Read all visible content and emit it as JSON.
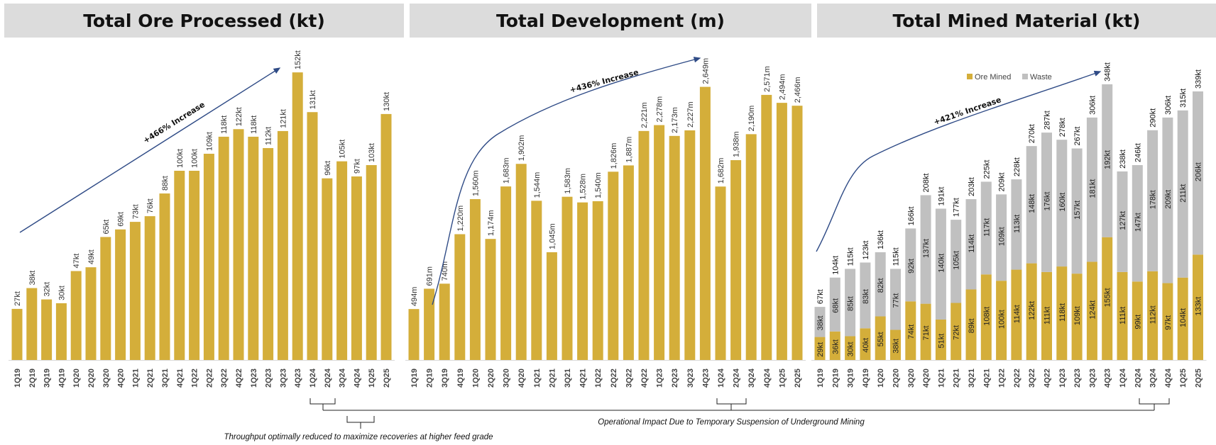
{
  "colors": {
    "ore": "#d4ae3a",
    "waste": "#c0c0c0",
    "arrow": "#2f4b86",
    "header_bg": "#dcdcdc"
  },
  "chart_data": [
    {
      "type": "bar",
      "title": "Total Ore Processed (kt)",
      "unit_suffix": "kt",
      "annotation": "+466% Increase",
      "categories": [
        "1Q19",
        "2Q19",
        "3Q19",
        "4Q19",
        "1Q20",
        "2Q20",
        "3Q20",
        "4Q20",
        "1Q21",
        "2Q21",
        "3Q21",
        "4Q21",
        "1Q22",
        "2Q22",
        "3Q22",
        "4Q22",
        "1Q23",
        "2Q23",
        "3Q23",
        "4Q23",
        "1Q24",
        "2Q24",
        "3Q24",
        "4Q24",
        "1Q25",
        "2Q25"
      ],
      "values": [
        27,
        38,
        32,
        30,
        47,
        49,
        65,
        69,
        73,
        76,
        88,
        100,
        100,
        109,
        118,
        122,
        118,
        112,
        121,
        152,
        131,
        96,
        105,
        97,
        103,
        130
      ],
      "labels": [
        "27kt",
        "38kt",
        "32kt",
        "30kt",
        "47kt",
        "49kt",
        "65kt",
        "69kt",
        "73kt",
        "76kt",
        "88kt",
        "100kt",
        "100kt",
        "109kt",
        "118kt",
        "122kt",
        "118kt",
        "112kt",
        "121kt",
        "152kt",
        "131kt",
        "96kt",
        "105kt",
        "97kt",
        "103kt",
        "130kt"
      ],
      "grid": false
    },
    {
      "type": "bar",
      "title": "Total Development (m)",
      "unit_suffix": "m",
      "annotation": "+436% Increase",
      "categories": [
        "1Q19",
        "2Q19",
        "3Q19",
        "4Q19",
        "1Q20",
        "2Q20",
        "3Q20",
        "4Q20",
        "1Q21",
        "2Q21",
        "3Q21",
        "4Q21",
        "1Q22",
        "2Q22",
        "3Q22",
        "4Q22",
        "1Q23",
        "2Q23",
        "3Q23",
        "4Q23",
        "1Q24",
        "2Q24",
        "3Q24",
        "4Q24",
        "1Q25",
        "2Q25"
      ],
      "values": [
        494,
        691,
        740,
        1220,
        1560,
        1174,
        1683,
        1902,
        1544,
        1045,
        1583,
        1528,
        1540,
        1826,
        1887,
        2221,
        2278,
        2173,
        2227,
        2649,
        1682,
        1938,
        2190,
        2571,
        2494,
        2466
      ],
      "labels": [
        "494m",
        "691m",
        "740m",
        "1,220m",
        "1,560m",
        "1,174m",
        "1,683m",
        "1,902m",
        "1,544m",
        "1,045m",
        "1,583m",
        "1,528m",
        "1,540m",
        "1,826m",
        "1,887m",
        "2,221m",
        "2,278m",
        "2,173m",
        "2,227m",
        "2,649m",
        "1,682m",
        "1,938m",
        "2,190m",
        "2,571m",
        "2,494m",
        "2,466m"
      ],
      "grid": false
    },
    {
      "type": "bar",
      "stacked": true,
      "title": "Total Mined Material (kt)",
      "annotation": "+421% Increase",
      "legend": "top-right",
      "categories": [
        "1Q19",
        "2Q19",
        "3Q19",
        "4Q19",
        "1Q20",
        "2Q20",
        "3Q20",
        "4Q20",
        "1Q21",
        "2Q21",
        "3Q21",
        "4Q21",
        "1Q22",
        "2Q22",
        "3Q22",
        "4Q22",
        "1Q23",
        "2Q23",
        "3Q23",
        "4Q23",
        "1Q24",
        "2Q24",
        "3Q24",
        "4Q24",
        "1Q25",
        "2Q25"
      ],
      "series": [
        {
          "name": "Ore Mined",
          "values": [
            29,
            36,
            30,
            40,
            55,
            38,
            74,
            71,
            51,
            72,
            89,
            108,
            100,
            114,
            122,
            111,
            118,
            109,
            124,
            155,
            111,
            99,
            112,
            97,
            104,
            133
          ]
        },
        {
          "name": "Waste",
          "values": [
            38,
            68,
            85,
            83,
            82,
            77,
            92,
            137,
            140,
            105,
            114,
            117,
            109,
            113,
            148,
            176,
            160,
            157,
            181,
            192,
            127,
            147,
            178,
            209,
            211,
            206
          ]
        }
      ],
      "totals": [
        67,
        104,
        115,
        123,
        136,
        115,
        166,
        208,
        191,
        177,
        203,
        225,
        209,
        228,
        270,
        287,
        278,
        267,
        306,
        348,
        238,
        246,
        290,
        306,
        315,
        339
      ],
      "grid": false
    }
  ],
  "notes": {
    "operational": "Operational Impact Due to Temporary Suspension of Underground Mining",
    "throughput": "Throughput optimally reduced to maximize recoveries at higher feed grade"
  }
}
